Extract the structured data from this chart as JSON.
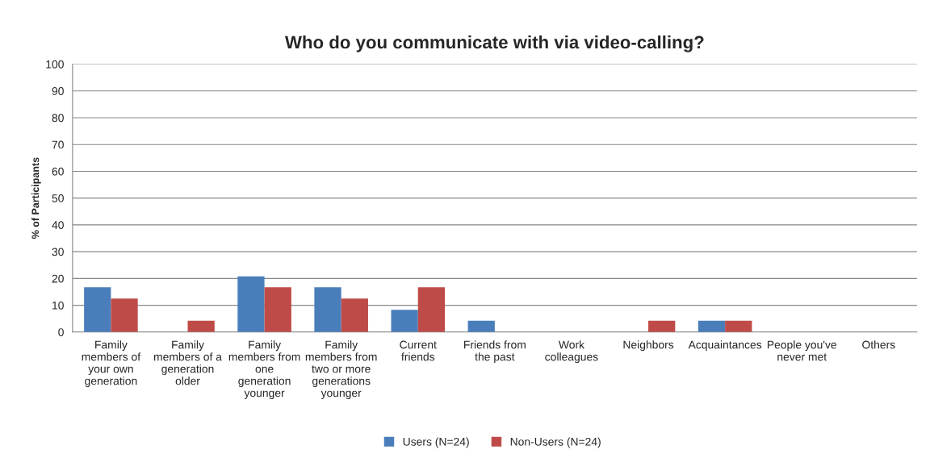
{
  "chart_data": {
    "type": "bar",
    "title": "Who do you communicate with via video-calling?",
    "ylabel": "% of Participants",
    "categories": [
      "Family\nmembers of\nyour own\ngeneration",
      "Family\nmembers of a\ngeneration\nolder",
      "Family\nmembers from\none\ngeneration\nyounger",
      "Family\nmembers from\ntwo or more\ngenerations\nyounger",
      "Current\nfriends",
      "Friends from\nthe past",
      "Work\ncolleagues",
      "Neighbors",
      "Acquaintances",
      "People you've\nnever met",
      "Others"
    ],
    "series": [
      {
        "name": "Users (N=24)",
        "color": "#4a7ebb",
        "values": [
          16.7,
          0,
          20.8,
          16.7,
          8.3,
          4.2,
          0,
          0,
          4.2,
          0,
          0
        ]
      },
      {
        "name": "Non-Users (N=24)",
        "color": "#be4b48",
        "values": [
          12.5,
          4.2,
          16.7,
          12.5,
          16.7,
          0,
          0,
          4.2,
          4.2,
          0,
          0
        ]
      }
    ],
    "ylim": [
      0,
      100
    ],
    "yticks": [
      0,
      10,
      20,
      30,
      40,
      50,
      60,
      70,
      80,
      90,
      100
    ],
    "grid": "y",
    "legend": "bottom"
  }
}
